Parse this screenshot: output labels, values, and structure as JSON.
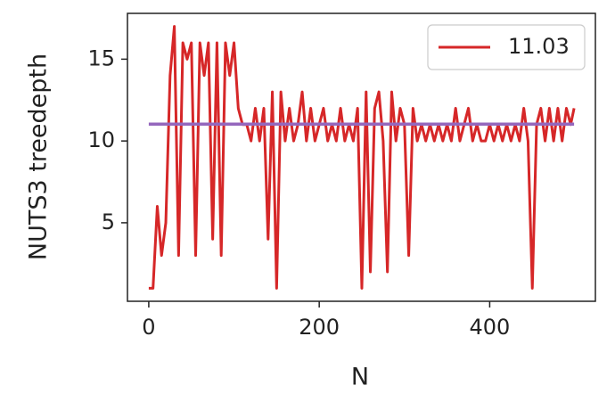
{
  "chart_data": {
    "type": "line",
    "xlabel": "N",
    "ylabel": "NUTS3 treedepth",
    "xlim": [
      -25,
      524
    ],
    "ylim": [
      0.2,
      17.8
    ],
    "xticks": [
      0,
      200,
      400
    ],
    "yticks": [
      5,
      10,
      15
    ],
    "grid": false,
    "legend": "upper right",
    "series": [
      {
        "name": "11.03",
        "color": "#d62728",
        "x": [
          0,
          5,
          10,
          15,
          20,
          25,
          30,
          35,
          40,
          45,
          50,
          55,
          60,
          65,
          70,
          75,
          80,
          85,
          90,
          95,
          100,
          105,
          110,
          115,
          120,
          125,
          130,
          135,
          140,
          145,
          150,
          155,
          160,
          165,
          170,
          175,
          180,
          185,
          190,
          195,
          200,
          205,
          210,
          215,
          220,
          225,
          230,
          235,
          240,
          245,
          250,
          255,
          260,
          265,
          270,
          275,
          280,
          285,
          290,
          295,
          300,
          305,
          310,
          315,
          320,
          325,
          330,
          335,
          340,
          345,
          350,
          355,
          360,
          365,
          370,
          375,
          380,
          385,
          390,
          395,
          400,
          405,
          410,
          415,
          420,
          425,
          430,
          435,
          440,
          445,
          450,
          455,
          460,
          465,
          470,
          475,
          480,
          485,
          490,
          495,
          499
        ],
        "values": [
          1,
          1,
          6,
          3,
          5,
          14,
          17,
          3,
          16,
          15,
          16,
          3,
          16,
          14,
          16,
          4,
          16,
          3,
          16,
          14,
          16,
          12,
          11,
          11,
          10,
          12,
          10,
          12,
          4,
          13,
          1,
          13,
          10,
          12,
          10,
          11,
          13,
          10,
          12,
          10,
          11,
          12,
          10,
          11,
          10,
          12,
          10,
          11,
          10,
          12,
          1,
          13,
          2,
          12,
          13,
          10,
          2,
          13,
          10,
          12,
          11,
          3,
          12,
          10,
          11,
          10,
          11,
          10,
          11,
          10,
          11,
          10,
          12,
          10,
          11,
          12,
          10,
          11,
          10,
          10,
          11,
          10,
          11,
          10,
          11,
          10,
          11,
          10,
          12,
          10,
          1,
          11,
          12,
          10,
          12,
          10,
          12,
          10,
          12,
          11,
          12
        ]
      }
    ],
    "hline": {
      "value": 11.03,
      "color": "#9467bd",
      "xrange": [
        0,
        499
      ]
    }
  }
}
